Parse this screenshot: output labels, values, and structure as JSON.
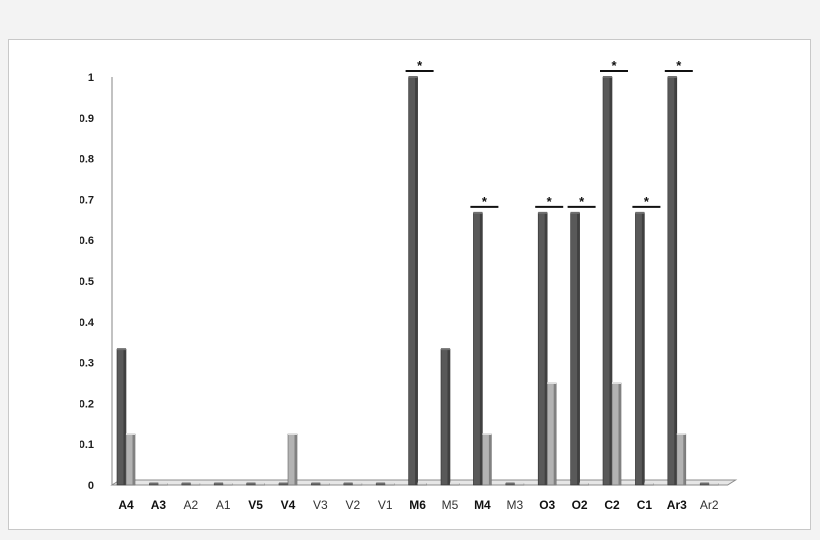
{
  "chart_data": {
    "type": "bar",
    "title": "",
    "xlabel": "",
    "ylabel": "",
    "ylim": [
      0,
      1
    ],
    "yticks": [
      "0",
      "0.1",
      "0.2",
      "0.3",
      "0.4",
      "0.5",
      "0.6",
      "0.7",
      "0.8",
      "0.9",
      "1"
    ],
    "grid": false,
    "legend": "none",
    "categories": [
      "A4",
      "A3",
      "A2",
      "A1",
      "V5",
      "V4",
      "V3",
      "V2",
      "V1",
      "M6",
      "M5",
      "M4",
      "M3",
      "O3",
      "O2",
      "C2",
      "C1",
      "Ar3",
      "Ar2"
    ],
    "bold_categories": [
      "A4",
      "A3",
      "V5",
      "V4",
      "M6",
      "M4",
      "O3",
      "O2",
      "C2",
      "C1",
      "Ar3"
    ],
    "series": [
      {
        "values": [
          0.333,
          0,
          0,
          0,
          0,
          0,
          0,
          0,
          0,
          1,
          0.333,
          0.667,
          0,
          0.667,
          0.667,
          1,
          0.667,
          1,
          0
        ],
        "color": "#595959"
      },
      {
        "values": [
          0.125,
          0,
          0,
          0,
          0,
          0.125,
          0,
          0,
          0,
          0,
          0,
          0.125,
          0,
          0.25,
          0,
          0.25,
          0,
          0.125,
          0
        ],
        "color": "#b3b3b3"
      }
    ],
    "significance_marker": "*",
    "significant_categories": [
      "M6",
      "M4",
      "O3",
      "O2",
      "C2",
      "C1",
      "Ar3"
    ]
  }
}
